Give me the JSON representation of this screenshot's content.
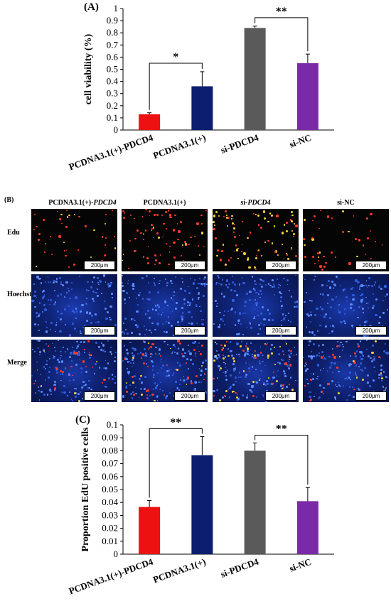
{
  "chart_data": [
    {
      "type": "bar",
      "panel": "(A)",
      "categories": [
        "PCDNA3.1(+)-PDCD4",
        "PCDNA3.1(+)",
        "si-PDCD4",
        "si-NC"
      ],
      "values": [
        0.13,
        0.36,
        0.84,
        0.55
      ],
      "errors": [
        0.012,
        0.12,
        0.015,
        0.075
      ],
      "colors": [
        "#ee1111",
        "#0b1f6e",
        "#5a5a5a",
        "#7a2aa6"
      ],
      "ylabel": "cell viability (%)",
      "ylim": [
        0,
        1
      ],
      "yticks": [
        "0",
        "0.1",
        "0.2",
        "0.3",
        "0.4",
        "0.5",
        "0.6",
        "0.7",
        "0.8",
        "0.9",
        "1"
      ],
      "significance": [
        {
          "from": 0,
          "to": 1,
          "label": "*"
        },
        {
          "from": 2,
          "to": 3,
          "label": "**"
        }
      ]
    },
    {
      "type": "bar",
      "panel": "(C)",
      "categories": [
        "PCDNA3.1(+)-PDCD4",
        "PCDNA3.1(+)",
        "si-PDCD4",
        "si-NC"
      ],
      "values": [
        0.0365,
        0.0765,
        0.08,
        0.041
      ],
      "errors": [
        0.005,
        0.0145,
        0.006,
        0.0105
      ],
      "colors": [
        "#ee1111",
        "#0b1f6e",
        "#5a5a5a",
        "#7a2aa6"
      ],
      "ylabel": "Proportion EdU positive cells",
      "ylim": [
        0,
        0.1
      ],
      "yticks": [
        "0",
        "0.01",
        "0.02",
        "0.03",
        "0.04",
        "0.05",
        "0.06",
        "0.07",
        "0.08",
        "0.09",
        "0.1"
      ],
      "significance": [
        {
          "from": 0,
          "to": 1,
          "label": "**"
        },
        {
          "from": 2,
          "to": 3,
          "label": "**"
        }
      ]
    }
  ],
  "microscopy": {
    "panel": "(B)",
    "columns": [
      {
        "prefix": "PCDNA3.1(+)-",
        "gene": "PDCD4"
      },
      {
        "prefix": "PCDNA3.1(+)",
        "gene": ""
      },
      {
        "prefix": "si-",
        "gene": "PDCD4"
      },
      {
        "prefix": "si-NC",
        "gene": ""
      }
    ],
    "rows": [
      "Edu",
      "Hoechst",
      "Merge"
    ],
    "scale_bar": "200μm"
  }
}
